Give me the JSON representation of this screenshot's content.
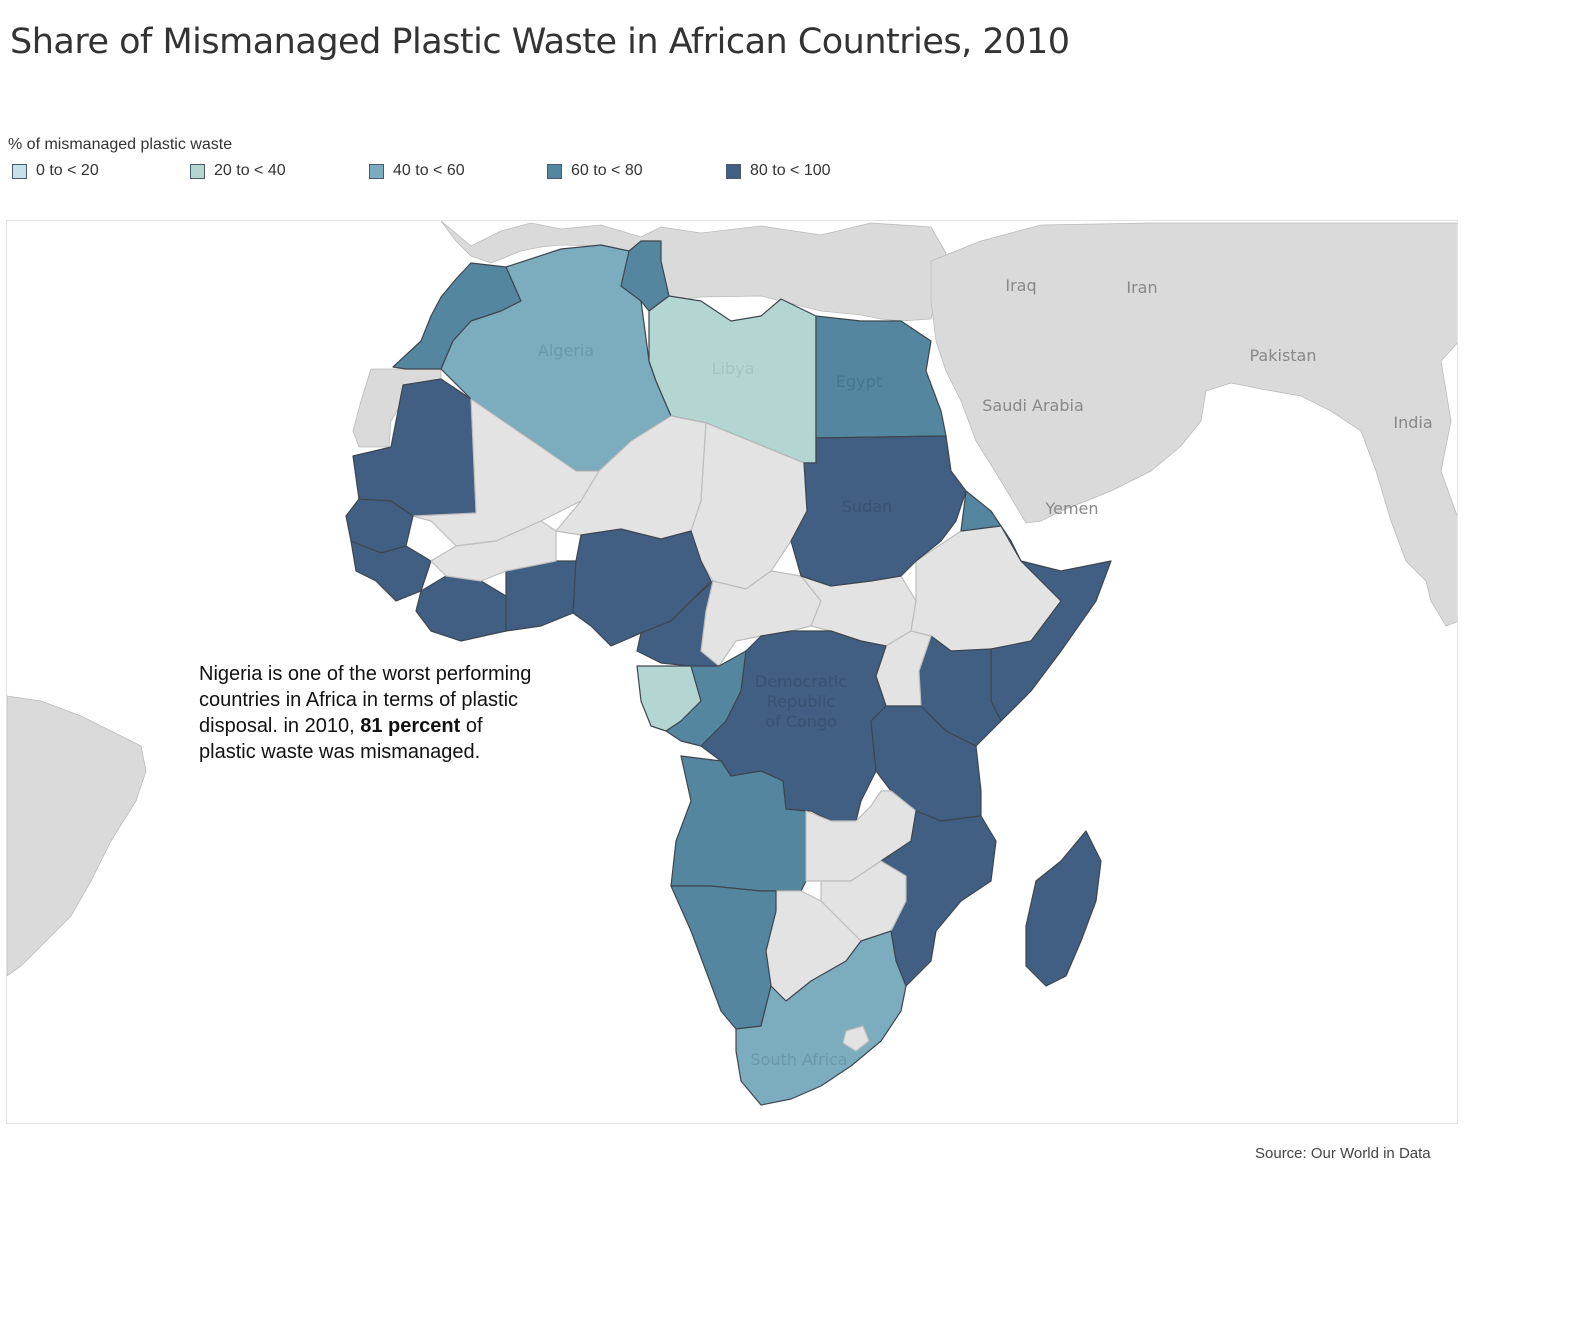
{
  "title": "Share of Mismanaged Plastic Waste in African Countries, 2010",
  "legend": {
    "title": "% of mismanaged plastic waste",
    "items": [
      {
        "label": "0 to < 20",
        "color": "#c8e0ea"
      },
      {
        "label": "20 to < 40",
        "color": "#b4d6d2"
      },
      {
        "label": "40 to < 60",
        "color": "#7badbe"
      },
      {
        "label": "60 to < 80",
        "color": "#55869f"
      },
      {
        "label": "80 to < 100",
        "color": "#415f82"
      }
    ]
  },
  "colors": {
    "no_data": "#e3e3e3",
    "outside": "#dadada",
    "border": "#3d4650",
    "water": "#ffffff"
  },
  "map": {
    "country_labels": {
      "algeria": "Algeria",
      "libya": "Libya",
      "egypt": "Egypt",
      "sudan": "Sudan",
      "drc_line1": "Democratic",
      "drc_line2": "Republic",
      "drc_line3": "of Congo",
      "south_africa": "South Africa",
      "iraq": "Iraq",
      "iran": "Iran",
      "saudi_arabia": "Saudi Arabia",
      "yemen": "Yemen",
      "pakistan": "Pakistan",
      "india": "India"
    }
  },
  "annotation": {
    "line1": "Nigeria is one of the worst performing",
    "line2": "countries in Africa in terms of plastic",
    "line3_pre": "disposal. in 2010, ",
    "line3_bold": "81 percent",
    "line3_post": " of",
    "line4": "plastic waste was mismanaged."
  },
  "source": "Source: Our World in Data"
}
